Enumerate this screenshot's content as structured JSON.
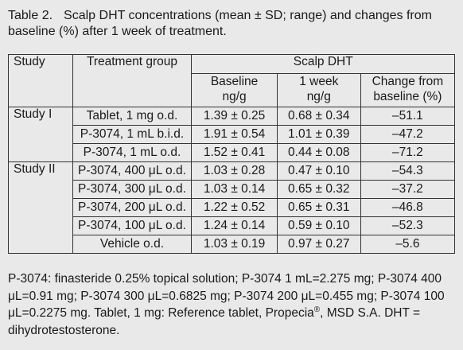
{
  "caption": {
    "label": "Table 2.",
    "text": "Scalp DHT concentrations (mean ± SD; range) and changes from baseline (%) after 1 week of treatment."
  },
  "headers": {
    "study": "Study",
    "group": "Treatment group",
    "scalp_dht": "Scalp DHT",
    "baseline": "Baseline",
    "baseline_unit": "ng/g",
    "week": "1 week",
    "week_unit": "ng/g",
    "change": "Change from",
    "change_unit": "baseline (%)"
  },
  "studies": [
    {
      "name": "Study I",
      "rows": [
        {
          "group": "Tablet, 1 mg o.d.",
          "baseline": "1.39 ± 0.25",
          "week": "0.68 ± 0.34",
          "change": "–51.1"
        },
        {
          "group": "P-3074, 1 mL b.i.d.",
          "baseline": "1.91 ± 0.54",
          "week": "1.01 ± 0.39",
          "change": "–47.2"
        },
        {
          "group": "P-3074, 1 mL o.d.",
          "baseline": "1.52 ± 0.41",
          "week": "0.44 ± 0.08",
          "change": "–71.2"
        }
      ]
    },
    {
      "name": "Study II",
      "rows": [
        {
          "group": "P-3074, 400 μL o.d.",
          "baseline": "1.03 ± 0.28",
          "week": "0.47 ± 0.10",
          "change": "–54.3"
        },
        {
          "group": "P-3074, 300 μL o.d.",
          "baseline": "1.03 ± 0.14",
          "week": "0.65 ± 0.32",
          "change": "–37.2"
        },
        {
          "group": "P-3074, 200 μL o.d.",
          "baseline": "1.22 ± 0.52",
          "week": "0.65 ± 0.31",
          "change": "–46.8"
        },
        {
          "group": "P-3074, 100 μL o.d.",
          "baseline": "1.24 ± 0.14",
          "week": "0.59 ± 0.10",
          "change": "–52.3"
        },
        {
          "group": "Vehicle o.d.",
          "baseline": "1.03 ± 0.19",
          "week": "0.97 ± 0.27",
          "change": "–5.6"
        }
      ]
    }
  ],
  "footnote": {
    "before": "P-3074: finasteride 0.25% topical solution; P-3074 1 mL=2.275 mg; P-3074 400 μL=0.91 mg; P-3074 300 μL=0.6825 mg; P-3074 200 μL=0.455 mg; P-3074 100 μL=0.2275 mg. Tablet, 1 mg: Reference tablet, Propecia",
    "sup": "®",
    "after": ", MSD S.A. DHT = dihydrotestosterone."
  }
}
